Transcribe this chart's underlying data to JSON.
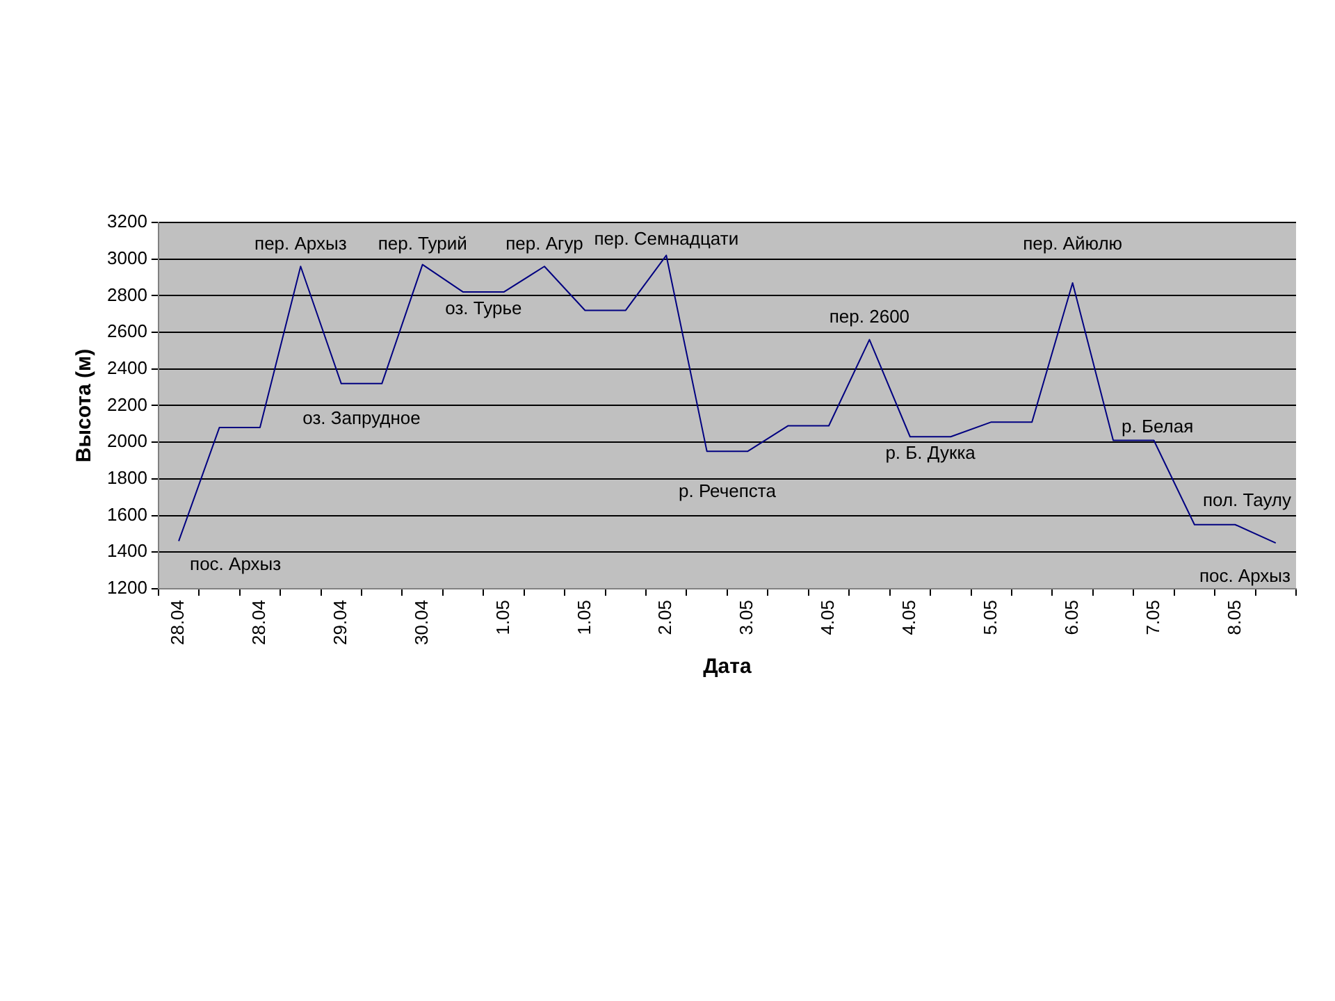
{
  "chart_data": {
    "type": "line",
    "xlabel": "Дата",
    "ylabel": "Высота (м)",
    "categories": [
      "28.04",
      null,
      "28.04",
      null,
      "29.04",
      null,
      "30.04",
      null,
      "1.05",
      null,
      "1.05",
      null,
      "2.05",
      null,
      "3.05",
      null,
      "4.05",
      null,
      "4.05",
      null,
      "5.05",
      null,
      "6.05",
      null,
      "7.05",
      null,
      "8.05",
      null
    ],
    "series": [
      {
        "color": "#000080",
        "values": [
          1460,
          2080,
          2080,
          2960,
          2320,
          2320,
          2970,
          2820,
          2820,
          2960,
          2720,
          2720,
          3020,
          1950,
          1950,
          2090,
          2090,
          2560,
          2030,
          2030,
          2110,
          2110,
          2870,
          2010,
          2010,
          1550,
          1550,
          1450
        ]
      }
    ],
    "ylim": [
      1200,
      3200
    ],
    "yticks": [
      1200,
      1400,
      1600,
      1800,
      2000,
      2200,
      2400,
      2600,
      2800,
      3000,
      3200
    ],
    "grid": "y",
    "legend": false,
    "marker": "none",
    "line_style": "solid",
    "annotations": [
      {
        "text": "пос. Архыз",
        "x": "28.04",
        "y": 1460
      },
      {
        "text": "пер. Архыз",
        "y": 2960
      },
      {
        "text": "оз. Запрудное",
        "y": 2320
      },
      {
        "text": "пер. Турий",
        "y": 2970
      },
      {
        "text": "оз. Турье",
        "y": 2820
      },
      {
        "text": "пер. Агур",
        "y": 2960
      },
      {
        "text": "пер. Семнадцати",
        "y": 3020
      },
      {
        "text": "р. Речепста",
        "y": 1950
      },
      {
        "text": "пер. 2600",
        "y": 2560
      },
      {
        "text": "р. Б. Дукка",
        "y": 2030
      },
      {
        "text": "пер. Айюлю",
        "y": 2870
      },
      {
        "text": "р. Белая",
        "y": 2010
      },
      {
        "text": "пол. Таулу",
        "y": 1550
      },
      "пос. Архыз"
    ]
  }
}
